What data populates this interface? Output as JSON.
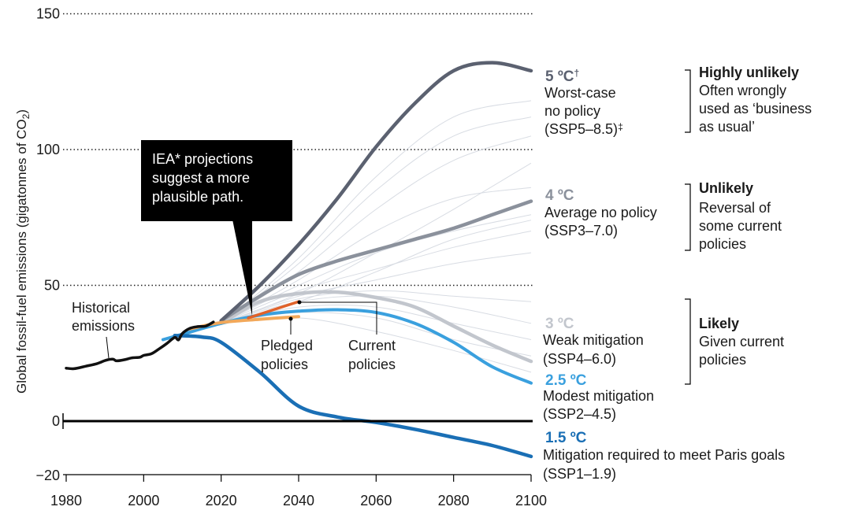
{
  "chart_data": {
    "type": "line",
    "ylabel": "Global fossil-fuel emissions (gigatonnes of CO",
    "ylabel_sub": "2",
    "ylabel_end": ")",
    "xlim": [
      1980,
      2100
    ],
    "ylim": [
      -20,
      150
    ],
    "x_ticks": [
      "1980",
      "2000",
      "2020",
      "2040",
      "2060",
      "2080",
      "2100"
    ],
    "y_ticks": [
      "150",
      "100",
      "50",
      "0",
      "−20"
    ],
    "y_tick_values": [
      150,
      100,
      50,
      0,
      -20
    ],
    "dotted_gridlines": [
      150,
      100,
      50
    ],
    "zero_line": 0,
    "colors": {
      "historical": "#111111",
      "ssp585": "#5b6170",
      "ssp370": "#8b919c",
      "ssp460": "#c2c6cd",
      "ssp245": "#3aa0de",
      "ssp119": "#1a6fb5",
      "pledged": "#f2a85a",
      "current": "#e0622a",
      "ensemble": "#d8dce3"
    },
    "series": [
      {
        "key": "historical",
        "x": [
          1980,
          1982,
          1985,
          1988,
          1990,
          1992,
          1993,
          1995,
          1997,
          1999,
          2000,
          2002,
          2004,
          2006,
          2008,
          2009,
          2010,
          2012,
          2014,
          2016,
          2018
        ],
        "y": [
          19.5,
          19.3,
          20.2,
          21.2,
          22.3,
          22.8,
          22.2,
          22.6,
          23.3,
          23.5,
          24.2,
          24.8,
          26.6,
          28.6,
          30.8,
          29.9,
          32.3,
          34.2,
          34.8,
          35.0,
          36.5
        ]
      },
      {
        "key": "ssp585",
        "x": [
          2020,
          2030,
          2040,
          2050,
          2060,
          2070,
          2080,
          2090,
          2100
        ],
        "y": [
          37,
          50,
          65,
          82,
          101,
          117,
          129,
          132,
          129
        ]
      },
      {
        "key": "ssp370",
        "x": [
          2020,
          2030,
          2040,
          2050,
          2060,
          2070,
          2080,
          2090,
          2100
        ],
        "y": [
          37,
          46,
          54,
          59,
          63,
          67,
          71,
          76,
          81
        ]
      },
      {
        "key": "ssp460",
        "x": [
          2020,
          2030,
          2040,
          2050,
          2060,
          2070,
          2080,
          2090,
          2100
        ],
        "y": [
          36,
          44,
          47,
          47.5,
          45.5,
          42,
          35,
          28,
          22
        ]
      },
      {
        "key": "ssp245",
        "x": [
          2005,
          2010,
          2020,
          2030,
          2040,
          2050,
          2060,
          2070,
          2080,
          2090,
          2100
        ],
        "y": [
          30,
          32,
          36,
          39,
          40.5,
          41,
          40,
          36,
          29,
          20,
          14
        ]
      },
      {
        "key": "ssp119",
        "x": [
          2008,
          2015,
          2020,
          2030,
          2040,
          2050,
          2060,
          2070,
          2080,
          2090,
          2100
        ],
        "y": [
          31.5,
          31,
          29,
          18,
          5.5,
          1.5,
          -0.5,
          -3,
          -6,
          -9,
          -13
        ]
      },
      {
        "key": "pledged",
        "x": [
          2012,
          2020,
          2030,
          2040
        ],
        "y": [
          34,
          36.3,
          37.5,
          38.5
        ]
      },
      {
        "key": "current",
        "x": [
          2027,
          2040
        ],
        "y": [
          38,
          44
        ]
      }
    ],
    "annotations": [
      {
        "temp": "5 ºC",
        "dagger": "†",
        "lines": [
          "Worst-case",
          "no policy",
          "(SSP5–8.5)"
        ],
        "suffix": "‡",
        "likelihood": "Highly unlikely",
        "reason": [
          "Often wrongly",
          "used as ‘business",
          "as usual’"
        ]
      },
      {
        "temp": "4 ºC",
        "lines": [
          "Average no policy",
          "(SSP3–7.0)"
        ],
        "likelihood": "Unlikely",
        "reason": [
          "Reversal of",
          "some current",
          "policies"
        ]
      },
      {
        "temp": "3 ºC",
        "lines": [
          "Weak mitigation",
          "(SSP4–6.0)"
        ],
        "likelihood": "Likely",
        "reason": [
          "Given current",
          "policies"
        ]
      },
      {
        "temp": "2.5 ºC",
        "lines": [
          "Modest mitigation",
          "(SSP2–4.5)"
        ]
      },
      {
        "temp": "1.5 ºC",
        "lines": [
          "Mitigation required to meet Paris goals",
          "(SSP1–1.9)"
        ]
      }
    ],
    "labels": {
      "historical": [
        "Historical",
        "emissions"
      ],
      "pledged": [
        "Pledged",
        "policies"
      ],
      "current": [
        "Current",
        "policies"
      ],
      "iea_callout": [
        "IEA* projections",
        "suggest a more",
        "plausible path."
      ]
    }
  }
}
